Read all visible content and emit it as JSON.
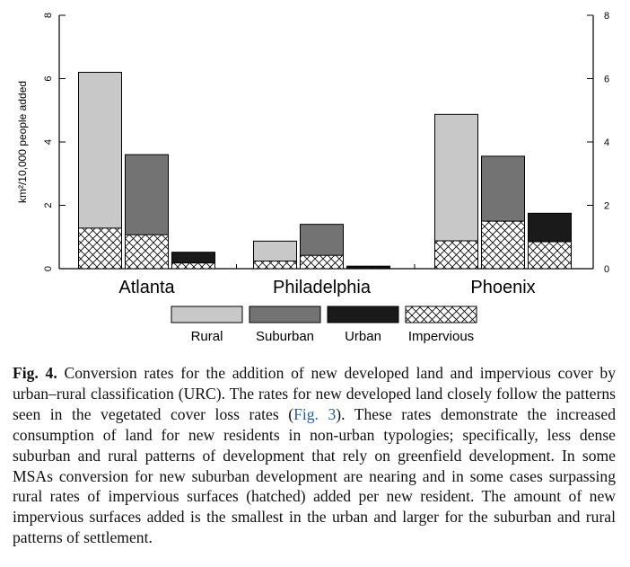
{
  "chart_data": {
    "type": "bar",
    "subtype": "grouped-overlay",
    "ylabel": "km²/10,000 people added",
    "ylim": [
      0,
      8
    ],
    "yticks": [
      "0",
      "2",
      "4",
      "6",
      "8"
    ],
    "groups": [
      "Atlanta",
      "Philadelphia",
      "Phoenix"
    ],
    "categories": [
      "Rural",
      "Suburban",
      "Urban"
    ],
    "series": [
      {
        "name": "Rural",
        "color": "#c8c8c8",
        "values": [
          6.2,
          0.87,
          4.87
        ]
      },
      {
        "name": "Suburban",
        "color": "#737373",
        "values": [
          3.6,
          1.4,
          3.55
        ]
      },
      {
        "name": "Urban",
        "color": "#1a1a1a",
        "values": [
          0.52,
          0.08,
          1.75
        ]
      }
    ],
    "impervious": {
      "name": "Impervious",
      "pattern": "hatched",
      "values": [
        [
          1.28,
          0.24,
          0.88
        ],
        [
          1.07,
          0.42,
          1.5
        ],
        [
          0.18,
          0.03,
          0.85
        ]
      ]
    },
    "legend": [
      "Rural",
      "Suburban",
      "Urban",
      "Impervious"
    ],
    "legend_position": "bottom"
  },
  "caption": {
    "fig_label": "Fig. 4.",
    "text_before_ref": "Conversion rates for the addition of new developed land and impervious cover by urban–rural classification (URC). The rates for new developed land closely follow the patterns seen in the vegetated cover loss rates (",
    "ref": "Fig. 3",
    "text_after_ref": "). These rates demonstrate the increased consumption of land for new residents in non-urban typologies; specifically, less dense suburban and rural patterns of development that rely on greenfield development. In some MSAs conversion for new suburban development are nearing and in some cases surpassing rural rates of impervious surfaces (hatched) added per new resident. The amount of new impervious surfaces added is the smallest in the urban and larger for the suburban and rural patterns of settlement."
  }
}
